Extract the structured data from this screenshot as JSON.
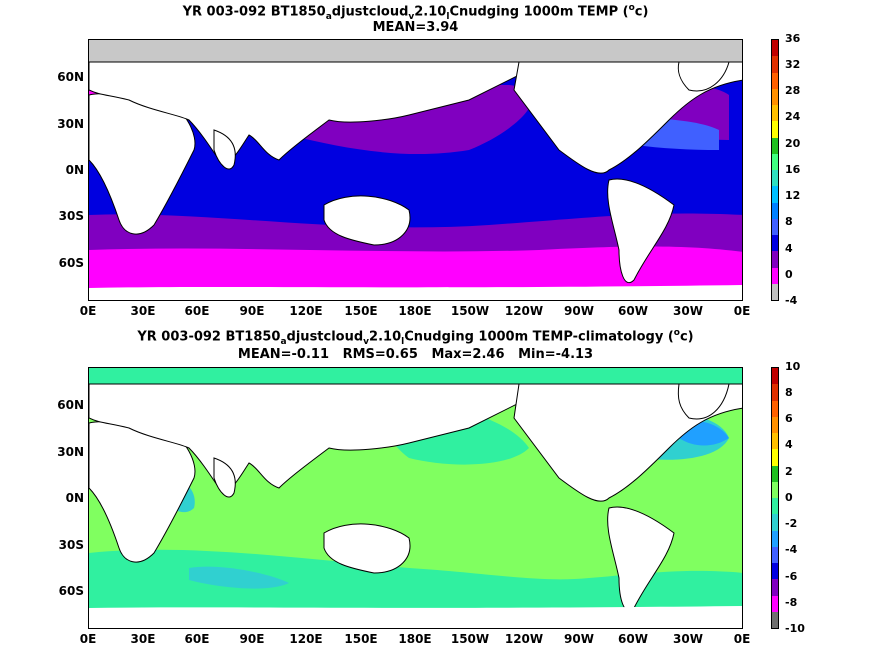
{
  "maps": [
    {
      "title_parts": [
        "YR 003-092 BT1850",
        "a",
        "djustcloud",
        "v",
        "2.10",
        "l",
        "Cnudging 1000m TEMP (",
        "o",
        "c)"
      ],
      "stats": "MEAN=3.94",
      "lat_labels": [
        "60N",
        "30N",
        "0N",
        "30S",
        "60S"
      ],
      "lon_labels": [
        "0E",
        "30E",
        "60E",
        "90E",
        "120E",
        "150E",
        "180E",
        "150W",
        "120W",
        "90W",
        "60W",
        "30W",
        "0E"
      ],
      "colorbar_labels": [
        "36",
        "32",
        "28",
        "24",
        "20",
        "16",
        "12",
        "8",
        "4",
        "0",
        "-4"
      ],
      "colorbar_colors": [
        "#c00000",
        "#e03000",
        "#ff6000",
        "#ff9000",
        "#ffc000",
        "#ffff00",
        "#20c020",
        "#40ff80",
        "#30e0c0",
        "#00c0ff",
        "#0080ff",
        "#4060ff",
        "#0000e0",
        "#8000c0",
        "#ff00ff",
        "#c0c0c0"
      ]
    },
    {
      "title_parts": [
        "YR 003-092 BT1850",
        "a",
        "djustcloud",
        "v",
        "2.10",
        "l",
        "Cnudging 1000m TEMP-climatology (",
        "o",
        "c)"
      ],
      "stats": "MEAN=-0.11   RMS=0.65   Max=2.46   Min=-4.13",
      "lat_labels": [
        "60N",
        "30N",
        "0N",
        "30S",
        "60S"
      ],
      "lon_labels": [
        "0E",
        "30E",
        "60E",
        "90E",
        "120E",
        "150E",
        "180E",
        "150W",
        "120W",
        "90W",
        "60W",
        "30W",
        "0E"
      ],
      "colorbar_labels": [
        "10",
        "8",
        "6",
        "4",
        "2",
        "0",
        "-2",
        "-4",
        "-6",
        "-8",
        "-10"
      ],
      "colorbar_colors": [
        "#c00000",
        "#e03000",
        "#ff6000",
        "#ff9000",
        "#ffc000",
        "#ffff00",
        "#20c020",
        "#80ff60",
        "#30f0a0",
        "#30d0d0",
        "#20a0ff",
        "#4060ff",
        "#0000e0",
        "#8000c0",
        "#ff00ff",
        "#707070"
      ]
    }
  ]
}
